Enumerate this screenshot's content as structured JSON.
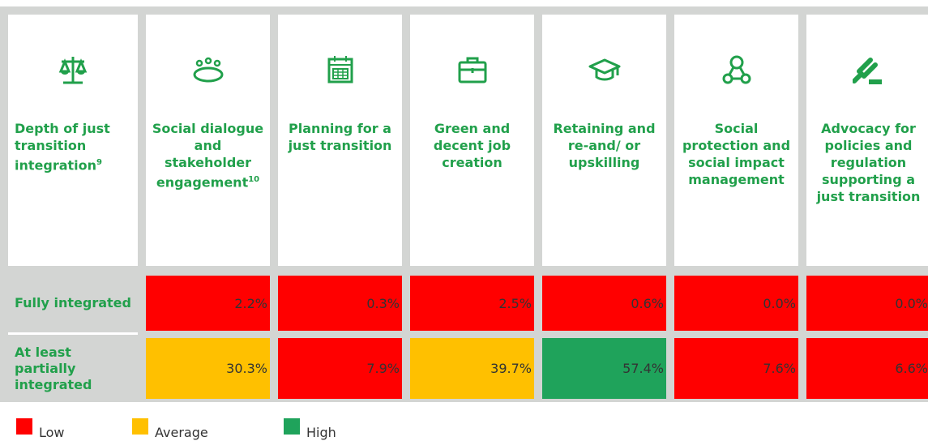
{
  "table": {
    "columns": [
      {
        "label": "Depth of just transition integration",
        "note": "9"
      },
      {
        "label": "Social dialogue and stakeholder engagement",
        "note": "10"
      },
      {
        "label": "Planning for a just transition"
      },
      {
        "label": "Green and decent job creation"
      },
      {
        "label": "Retaining and re-and/ or upskilling"
      },
      {
        "label": "Social protection and social impact management"
      },
      {
        "label": "Advocacy for policies and regulation supporting a just transition"
      }
    ],
    "rows": [
      {
        "label": "Fully integrated",
        "cells": [
          {
            "text": "2.2%",
            "color": "#ff0000"
          },
          {
            "text": "0.3%",
            "color": "#ff0000"
          },
          {
            "text": "2.5%",
            "color": "#ff0000"
          },
          {
            "text": "0.6%",
            "color": "#ff0000"
          },
          {
            "text": "0.0%",
            "color": "#ff0000"
          },
          {
            "text": "0.0%",
            "color": "#ff0000"
          }
        ]
      },
      {
        "label": "At least partially integrated",
        "cells": [
          {
            "text": "30.3%",
            "color": "#ffc000"
          },
          {
            "text": "7.9%",
            "color": "#ff0000"
          },
          {
            "text": "39.7%",
            "color": "#ffc000"
          },
          {
            "text": "57.4%",
            "color": "#1fa35b"
          },
          {
            "text": "7.6%",
            "color": "#ff0000"
          },
          {
            "text": "6.6%",
            "color": "#ff0000"
          }
        ]
      }
    ]
  },
  "legend": [
    {
      "name": "Low",
      "color": "#ff0000"
    },
    {
      "name": "Average",
      "color": "#ffc000"
    },
    {
      "name": "High",
      "color": "#1fa35b"
    }
  ]
}
